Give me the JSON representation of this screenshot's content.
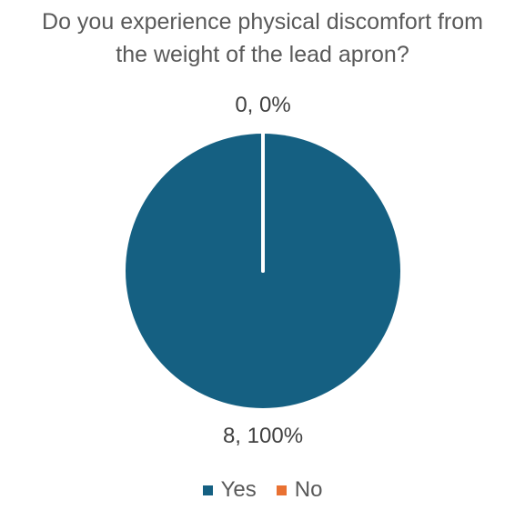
{
  "chart_data": {
    "type": "pie",
    "title_lines": [
      "Do you experience physical discomfort from",
      "the weight of the lead apron?"
    ],
    "categories": [
      "Yes",
      "No"
    ],
    "values": [
      8,
      0
    ],
    "data_labels": [
      "8, 100%",
      "0, 0%"
    ],
    "colors": [
      "#156082",
      "#E97132"
    ],
    "legend_position": "bottom",
    "slice_border_color": "#FFFFFF"
  }
}
